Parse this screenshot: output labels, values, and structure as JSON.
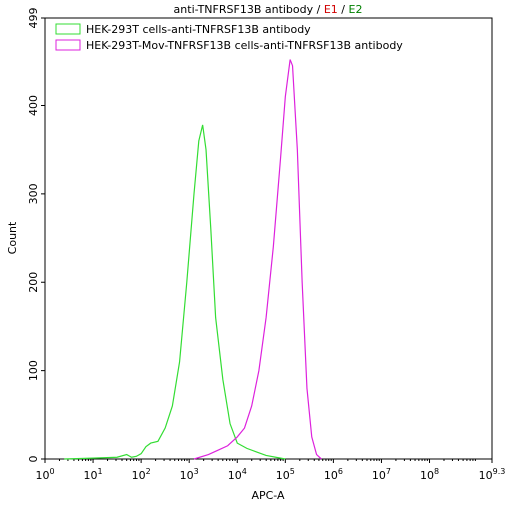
{
  "chart_data": {
    "type": "line",
    "title_parts": [
      {
        "text": "anti-TNFRSF13B antibody / ",
        "color": "#000000"
      },
      {
        "text": "E1",
        "color": "#d00000"
      },
      {
        "text": " / ",
        "color": "#000000"
      },
      {
        "text": "E2",
        "color": "#008000"
      }
    ],
    "x_label": "APC-A",
    "y_label": "Count",
    "x_scale": "log",
    "xlim": [
      1,
      1995262315
    ],
    "ylim": [
      0,
      499
    ],
    "xticks": [
      {
        "value": 1,
        "label": "10",
        "exponent": "0"
      },
      {
        "value": 10,
        "label": "10",
        "exponent": "1"
      },
      {
        "value": 100,
        "label": "10",
        "exponent": "2"
      },
      {
        "value": 1000,
        "label": "10",
        "exponent": "3"
      },
      {
        "value": 10000,
        "label": "10",
        "exponent": "4"
      },
      {
        "value": 100000,
        "label": "10",
        "exponent": "5"
      },
      {
        "value": 1000000,
        "label": "10",
        "exponent": "6"
      },
      {
        "value": 10000000,
        "label": "10",
        "exponent": "7"
      },
      {
        "value": 100000000,
        "label": "10",
        "exponent": "8"
      },
      {
        "value": 1995262315,
        "label": "10",
        "exponent": "9.3"
      }
    ],
    "yticks": [
      0,
      100,
      200,
      300,
      400,
      499
    ],
    "series": [
      {
        "name": "HEK-293T cells-anti-TNFRSF13B antibody",
        "color": "#33dd33",
        "x": [
          2.51,
          10,
          31.6,
          50.1,
          63.1,
          79.4,
          100,
          125.9,
          158.5,
          223.9,
          316.2,
          446.7,
          631,
          891.3,
          1258.9,
          1584.9,
          1905.5,
          2238.7,
          2818.4,
          3548.1,
          5011.9,
          7079.5,
          10000,
          15848.9,
          25118.9,
          39810.7,
          79432.8,
          100000
        ],
        "values": [
          0,
          1,
          2,
          5,
          2,
          3,
          6,
          14,
          18,
          20,
          35,
          60,
          110,
          200,
          300,
          360,
          378,
          350,
          260,
          160,
          90,
          40,
          18,
          12,
          8,
          4,
          1,
          0
        ]
      },
      {
        "name": "HEK-293T-Mov-TNFRSF13B cells-anti-TNFRSF13B antibody",
        "color": "#dd22dd",
        "x": [
          1258.9,
          2511.9,
          3981.1,
          6309.6,
          10000,
          14125.4,
          19952.6,
          28183.8,
          39810.7,
          56234.1,
          79432.8,
          100000,
          125892.5,
          141253.8,
          177827.9,
          223872.1,
          281838.3,
          354813.4,
          446683.6,
          562341.3
        ],
        "values": [
          0,
          5,
          10,
          15,
          25,
          35,
          60,
          100,
          160,
          240,
          340,
          410,
          452,
          445,
          350,
          200,
          80,
          25,
          5,
          0
        ]
      }
    ]
  }
}
